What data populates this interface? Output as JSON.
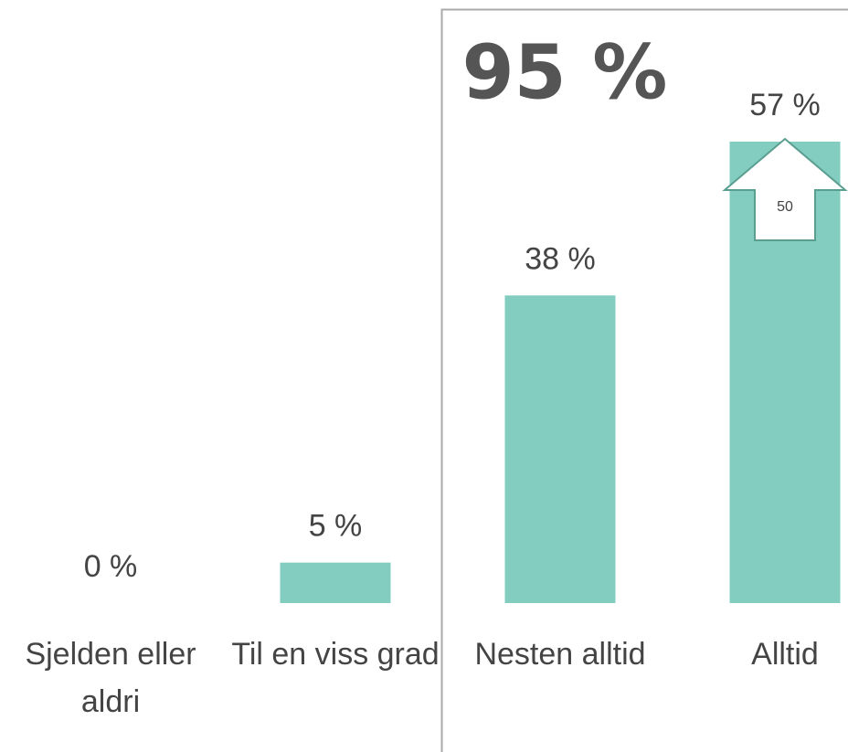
{
  "chart_data": {
    "type": "bar",
    "categories": [
      "Sjelden eller aldri",
      "Til en viss grad",
      "Nesten alltid",
      "Alltid"
    ],
    "values": [
      0,
      5,
      38,
      57
    ],
    "value_labels": [
      "0 %",
      "5 %",
      "38 %",
      "57 %"
    ],
    "color": "#82cdc0",
    "annotations": [
      {
        "text": "95 %"
      },
      {
        "text": "50"
      }
    ]
  }
}
